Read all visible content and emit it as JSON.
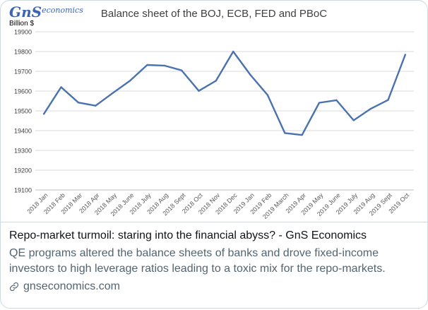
{
  "card": {
    "title": "Repo-market turmoil: staring into the financial abyss? - GnS Economics",
    "description": "QE programs altered the balance sheets of banks and drove fixed-income investors to high leverage ratios leading to a toxic mix for the repo-markets.",
    "domain": "gnseconomics.com",
    "link_icon": "link-icon"
  },
  "logo": {
    "big": "GnS",
    "small": "economics"
  },
  "chart_data": {
    "type": "line",
    "title": "Balance sheet of the BOJ, ECB, FED and PBoC",
    "ylabel": "Billion $",
    "xlabel": "",
    "ylim": [
      19100,
      19900
    ],
    "yticks": [
      19100,
      19200,
      19300,
      19400,
      19500,
      19600,
      19700,
      19800,
      19900
    ],
    "grid": true,
    "categories": [
      "2018 Jan",
      "2018 Feb",
      "2018 Mar",
      "2018 Apr",
      "2018 May",
      "2018 June",
      "2018 July",
      "2018 Aug",
      "2018 Sept",
      "2018 Oct",
      "2018 Nov",
      "2018 Dec",
      "2019 Jan",
      "2019 Feb",
      "2019 March",
      "2019 Apr",
      "2019 May",
      "2019 June",
      "2019 July",
      "2019 Aug",
      "2019 Sept",
      "2019 Oct"
    ],
    "series": [
      {
        "values": [
          19485,
          19620,
          19542,
          19526,
          19590,
          19652,
          19732,
          19729,
          19705,
          19601,
          19652,
          19800,
          19682,
          19580,
          19388,
          19378,
          19541,
          19554,
          19452,
          19511,
          19555,
          19784
        ]
      }
    ],
    "line_color": "#4a72b0",
    "grid_color": "#d9d9d9"
  }
}
